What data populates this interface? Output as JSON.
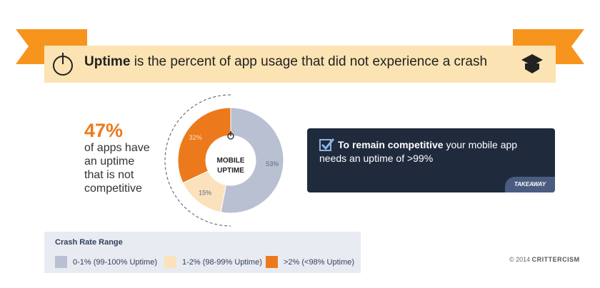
{
  "banner": {
    "title_bold": "Uptime",
    "title_rest": "is the percent of app usage that did not experience a crash"
  },
  "stat": {
    "value": "47%",
    "lines": [
      "of apps have",
      "an uptime",
      "that is not",
      "competitive"
    ]
  },
  "chart_data": {
    "type": "donut",
    "center_label": [
      "MOBILE",
      "UPTIME"
    ],
    "legend_title": "Crash Rate Range",
    "categories": [
      "0-1% (99-100% Uptime)",
      "1-2% (98-99% Uptime)",
      ">2% (<98% Uptime)"
    ],
    "values": [
      53,
      15,
      32
    ],
    "value_labels": [
      "53%",
      "15%",
      "32%"
    ],
    "colors": [
      "#b9c0d1",
      "#fbe2bd",
      "#ec7a1c"
    ]
  },
  "takeaway": {
    "bold": "To remain competitive",
    "text": "your mobile app needs an uptime of >99%",
    "tag": "TAKEAWAY"
  },
  "footer": {
    "copyright": "© 2014",
    "brand": "CRITTERCISM"
  }
}
